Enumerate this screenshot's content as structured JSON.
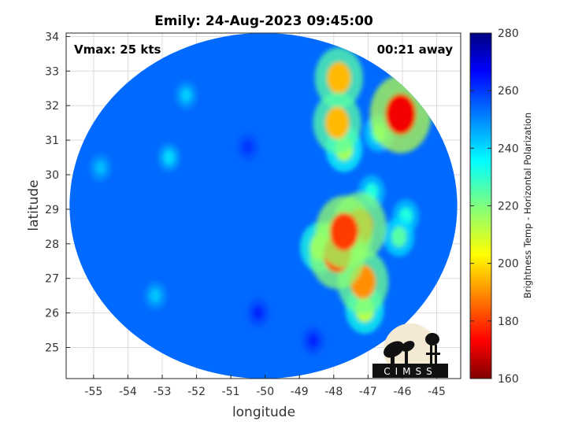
{
  "chart_data": {
    "type": "heatmap",
    "title": "Emily: 24-Aug-2023 09:45:00",
    "xlabel": "longitude",
    "ylabel": "latitude",
    "xlim": [
      -55.8,
      -44.3
    ],
    "ylim": [
      24.1,
      34.1
    ],
    "xticks": [
      -55,
      -54,
      -53,
      -52,
      -51,
      -50,
      -49,
      -48,
      -47,
      -46,
      -45
    ],
    "yticks": [
      25,
      26,
      27,
      28,
      29,
      30,
      31,
      32,
      33,
      34
    ],
    "grid": true,
    "swath": {
      "center_lon": -50.05,
      "center_lat": 29.1,
      "radius_lon": 5.65,
      "radius_lat": 5.0
    },
    "background_value": 254,
    "annotations": {
      "vmax": "Vmax: 25 kts",
      "time_away": "00:21 away"
    },
    "colorbar": {
      "label": "Brightness Temp - Horizontal Polarization",
      "min": 160,
      "max": 280,
      "ticks": [
        160,
        180,
        200,
        220,
        240,
        260,
        280
      ],
      "colormap": "jet"
    },
    "features": [
      {
        "lon": -46.05,
        "lat": 31.75,
        "value": 172
      },
      {
        "lon": -47.7,
        "lat": 28.35,
        "value": 180
      },
      {
        "lon": -47.25,
        "lat": 28.5,
        "value": 185
      },
      {
        "lon": -47.9,
        "lat": 27.7,
        "value": 183
      },
      {
        "lon": -47.15,
        "lat": 26.9,
        "value": 190
      },
      {
        "lon": -47.85,
        "lat": 32.8,
        "value": 195
      },
      {
        "lon": -47.9,
        "lat": 31.5,
        "value": 195
      },
      {
        "lon": -47.7,
        "lat": 30.75,
        "value": 215
      },
      {
        "lon": -48.4,
        "lat": 27.9,
        "value": 210
      },
      {
        "lon": -47.1,
        "lat": 26.1,
        "value": 212
      },
      {
        "lon": -46.1,
        "lat": 28.2,
        "value": 225
      },
      {
        "lon": -46.7,
        "lat": 31.2,
        "value": 228
      },
      {
        "lon": -45.9,
        "lat": 28.8,
        "value": 232
      },
      {
        "lon": -46.9,
        "lat": 29.5,
        "value": 232
      },
      {
        "lon": -52.8,
        "lat": 30.5,
        "value": 240
      },
      {
        "lon": -52.3,
        "lat": 32.3,
        "value": 242
      },
      {
        "lon": -53.2,
        "lat": 26.5,
        "value": 243
      },
      {
        "lon": -54.8,
        "lat": 30.2,
        "value": 244
      },
      {
        "lon": -50.2,
        "lat": 26.0,
        "value": 262
      },
      {
        "lon": -50.5,
        "lat": 30.8,
        "value": 260
      },
      {
        "lon": -48.6,
        "lat": 25.2,
        "value": 262
      }
    ]
  },
  "logo": {
    "text": "CIMSS"
  }
}
